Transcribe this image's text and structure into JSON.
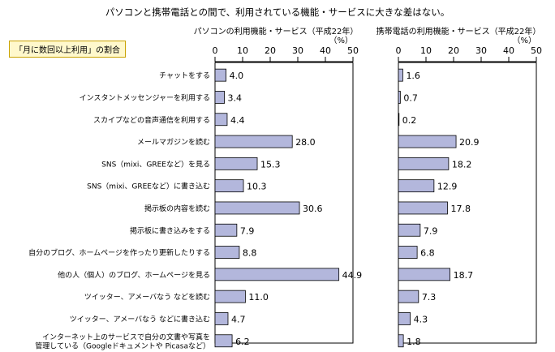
{
  "title": "パソコンと携帯電話との間で、利用されている機能・サービスに大きな差はない。",
  "legend_label": "「月に数回以上利用」の割合",
  "colors": {
    "bar_fill": "#b3b7dc",
    "bar_stroke": "#000000",
    "axis": "#000000",
    "legend_border": "#c9a200",
    "legend_bg": "#fff8cc"
  },
  "chart_data": [
    {
      "type": "bar",
      "orientation": "horizontal",
      "title": "パソコンの利用機能・サービス（平成22年）",
      "unit": "（%）",
      "xlim": [
        0,
        50
      ],
      "ticks": [
        0,
        10,
        20,
        30,
        40,
        50
      ],
      "categories": [
        "チャットをする",
        "インスタントメッセンジャーを利用する",
        "スカイプなどの音声通信を利用する",
        "メールマガジンを読む",
        "SNS（mixi、GREEなど）を見る",
        "SNS（mixi、GREEなど）に書き込む",
        "掲示板の内容を読む",
        "掲示板に書き込みをする",
        "自分のブログ、ホームページを作ったり更新したりする",
        "他の人（個人）のブログ、ホームページを見る",
        "ツイッター、アメーバなう などを読む",
        "ツイッター、アメーバなう などに書き込む",
        "インターネット上のサービスで自分の文書や写真を\n管理している（Googleドキュメントや Picasaなど）"
      ],
      "values": [
        4.0,
        3.4,
        4.4,
        28.0,
        15.3,
        10.3,
        30.6,
        7.9,
        8.8,
        44.9,
        11.0,
        4.7,
        6.2
      ],
      "value_labels": [
        "4.0",
        "3.4",
        "4.4",
        "28.0",
        "15.3",
        "10.3",
        "30.6",
        "7.9",
        "8.8",
        "44.9",
        "11.0",
        "4.7",
        "6.2"
      ]
    },
    {
      "type": "bar",
      "orientation": "horizontal",
      "title": "携帯電話の利用機能・サービス（平成22年）",
      "unit": "（%）",
      "xlim": [
        0,
        50
      ],
      "ticks": [
        0,
        10,
        20,
        30,
        40,
        50
      ],
      "categories": [
        "チャットをする",
        "インスタントメッセンジャーを利用する",
        "スカイプなどの音声通信を利用する",
        "メールマガジンを読む",
        "SNS（mixi、GREEなど）を見る",
        "SNS（mixi、GREEなど）に書き込む",
        "掲示板の内容を読む",
        "掲示板に書き込みをする",
        "自分のブログ、ホームページを作ったり更新したりする",
        "他の人（個人）のブログ、ホームページを見る",
        "ツイッター、アメーバなう などを読む",
        "ツイッター、アメーバなう などに書き込む",
        "インターネット上のサービスで自分の文書や写真を\n管理している（Googleドキュメントや Picasaなど）"
      ],
      "values": [
        1.6,
        0.7,
        0.2,
        20.9,
        18.2,
        12.9,
        17.8,
        7.9,
        6.8,
        18.7,
        7.3,
        4.3,
        1.8
      ],
      "value_labels": [
        "1.6",
        "0.7",
        "0.2",
        "20.9",
        "18.2",
        "12.9",
        "17.8",
        "7.9",
        "6.8",
        "18.7",
        "7.3",
        "4.3",
        "1.8"
      ]
    }
  ]
}
